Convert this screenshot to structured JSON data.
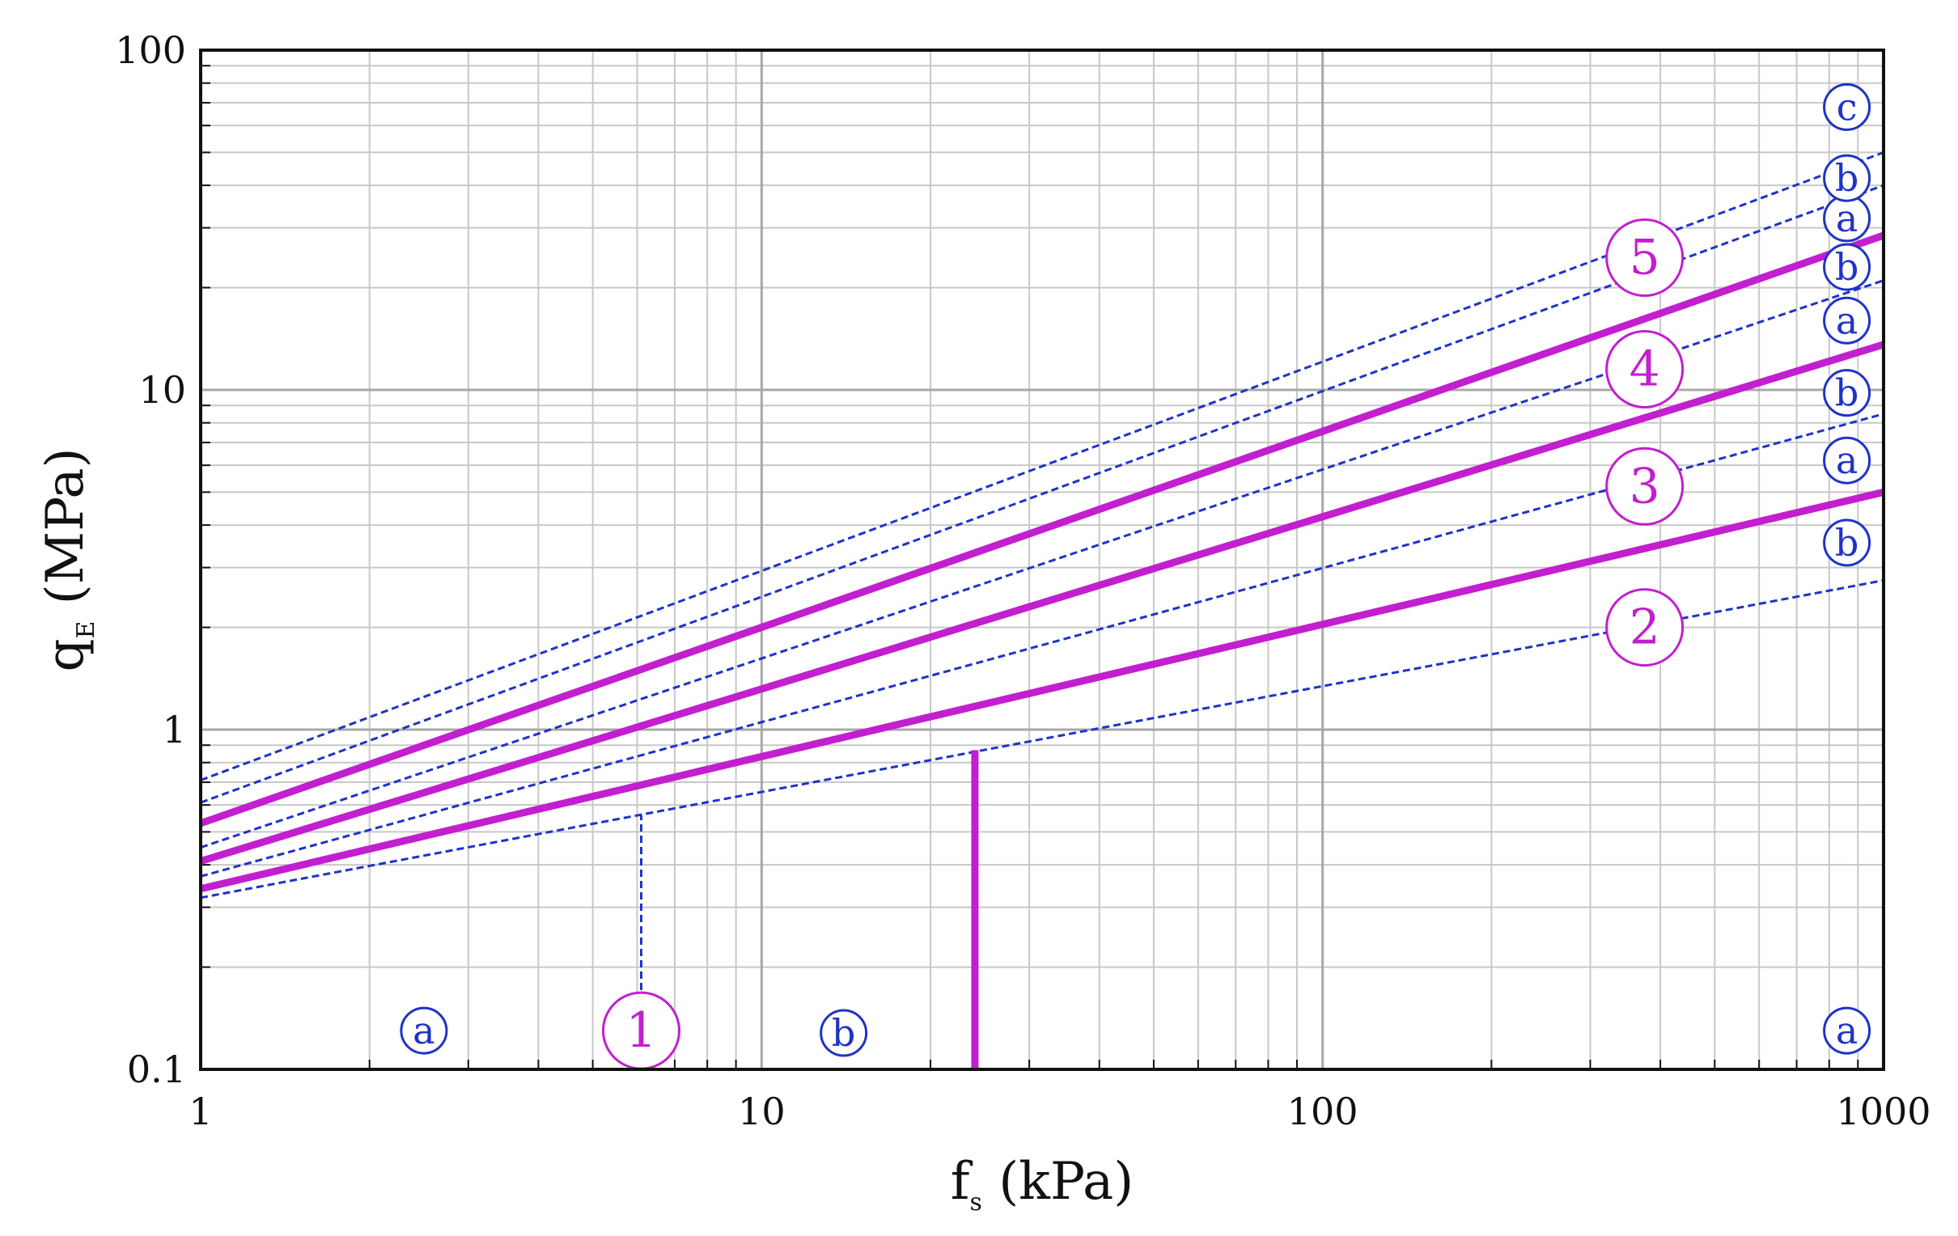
{
  "chart_data": {
    "type": "line",
    "xlabel": {
      "main": "f",
      "sub": "s",
      "rest": " (kPa)"
    },
    "ylabel": {
      "main": "q",
      "sub": "E",
      "rest": " (MPa)"
    },
    "xscale": "log",
    "yscale": "log",
    "xlim": [
      1,
      1000
    ],
    "ylim": [
      0.1,
      100
    ],
    "x_ticks": [
      "1",
      "10",
      "100",
      "1000"
    ],
    "y_ticks": [
      "0.1",
      "1",
      "10",
      "100"
    ],
    "grid": true,
    "colors": {
      "boundary": "#c21fcf",
      "subdivision": "#1f33c7",
      "grid": "#c8c8c8",
      "frame": "#111111"
    },
    "boundaries": [
      {
        "name": "2-3",
        "style": "solid",
        "x": [
          1,
          1000
        ],
        "y": [
          0.34,
          5.0
        ]
      },
      {
        "name": "3-4",
        "style": "solid",
        "x": [
          1,
          1000
        ],
        "y": [
          0.41,
          13.6
        ]
      },
      {
        "name": "4-5",
        "style": "solid",
        "x": [
          1,
          1000
        ],
        "y": [
          0.53,
          28.5
        ]
      },
      {
        "name": "1-2",
        "style": "solid",
        "x": [
          24,
          24
        ],
        "y": [
          0.1,
          0.87
        ]
      }
    ],
    "subdivisions": [
      {
        "name": "2a-2b",
        "style": "dashed",
        "x": [
          1,
          1000
        ],
        "y": [
          0.32,
          2.75
        ]
      },
      {
        "name": "3a-3b",
        "style": "dashed",
        "x": [
          1,
          1000
        ],
        "y": [
          0.37,
          8.5
        ]
      },
      {
        "name": "4a-4b",
        "style": "dashed",
        "x": [
          1,
          1000
        ],
        "y": [
          0.45,
          21.0
        ]
      },
      {
        "name": "5a-5b",
        "style": "dashed",
        "x": [
          1,
          1000
        ],
        "y": [
          0.61,
          40.0
        ]
      },
      {
        "name": "5b-5c",
        "style": "dashed",
        "x": [
          1,
          1000
        ],
        "y": [
          0.71,
          50.0
        ]
      },
      {
        "name": "1a-1b",
        "style": "dashed",
        "x": [
          6.1,
          6.1
        ],
        "y": [
          0.1,
          0.56
        ]
      }
    ],
    "zone_labels": [
      {
        "text": "1",
        "kind": "zone",
        "x": 6.1,
        "y": 0.13
      },
      {
        "text": "2",
        "kind": "zone",
        "x": 375,
        "y": 2.0
      },
      {
        "text": "3",
        "kind": "zone",
        "x": 375,
        "y": 5.2
      },
      {
        "text": "4",
        "kind": "zone",
        "x": 375,
        "y": 11.5
      },
      {
        "text": "5",
        "kind": "zone",
        "x": 375,
        "y": 24.5
      },
      {
        "text": "a",
        "kind": "sub",
        "x": 2.5,
        "y": 0.13
      },
      {
        "text": "b",
        "kind": "sub",
        "x": 14,
        "y": 0.128
      },
      {
        "text": "a",
        "kind": "sub",
        "x": 860,
        "y": 0.13
      },
      {
        "text": "b",
        "kind": "sub",
        "x": 860,
        "y": 3.55
      },
      {
        "text": "a",
        "kind": "sub",
        "x": 860,
        "y": 6.2
      },
      {
        "text": "b",
        "kind": "sub",
        "x": 860,
        "y": 9.8
      },
      {
        "text": "a",
        "kind": "sub",
        "x": 860,
        "y": 16
      },
      {
        "text": "b",
        "kind": "sub",
        "x": 860,
        "y": 23
      },
      {
        "text": "a",
        "kind": "sub",
        "x": 860,
        "y": 32
      },
      {
        "text": "b",
        "kind": "sub",
        "x": 860,
        "y": 42
      },
      {
        "text": "c",
        "kind": "sub",
        "x": 860,
        "y": 68
      }
    ]
  }
}
